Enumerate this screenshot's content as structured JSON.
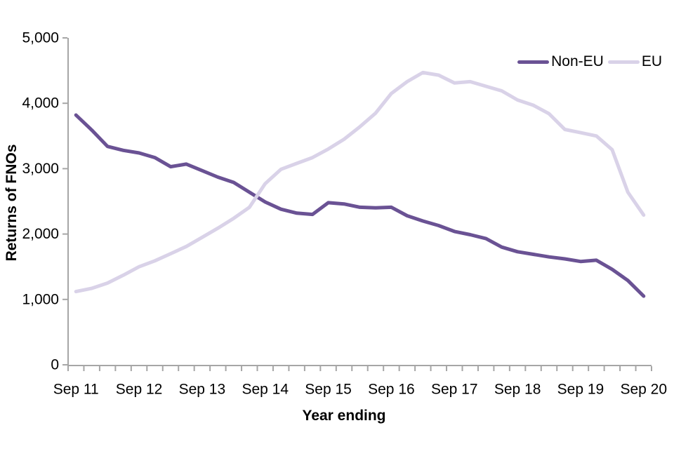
{
  "page": {
    "background": "#ffffff"
  },
  "chart_data": {
    "type": "line",
    "title": "",
    "xlabel": "Year ending",
    "ylabel": "Returns of FNOs",
    "ylim": [
      0,
      5000
    ],
    "grid": false,
    "legend_position": "top-right",
    "axis_color": "#a6a6a6",
    "text_color": "#000000",
    "line_width": 5,
    "y_ticks": [
      0,
      1000,
      2000,
      3000,
      4000,
      5000
    ],
    "y_tick_labels": [
      "0",
      "1,000",
      "2,000",
      "3,000",
      "4,000",
      "5,000"
    ],
    "x_major_tick_labels": [
      "Sep 11",
      "Sep 12",
      "Sep 13",
      "Sep 14",
      "Sep 15",
      "Sep 16",
      "Sep 17",
      "Sep 18",
      "Sep 19",
      "Sep 20"
    ],
    "categories": [
      "Sep 11",
      "Dec 11",
      "Mar 12",
      "Jun 12",
      "Sep 12",
      "Dec 12",
      "Mar 13",
      "Jun 13",
      "Sep 13",
      "Dec 13",
      "Mar 14",
      "Jun 14",
      "Sep 14",
      "Dec 14",
      "Mar 15",
      "Jun 15",
      "Sep 15",
      "Dec 15",
      "Mar 16",
      "Jun 16",
      "Sep 16",
      "Dec 16",
      "Mar 17",
      "Jun 17",
      "Sep 17",
      "Dec 17",
      "Mar 18",
      "Jun 18",
      "Sep 18",
      "Dec 18",
      "Mar 19",
      "Jun 19",
      "Sep 19",
      "Dec 19",
      "Mar 20",
      "Jun 20",
      "Sep 20"
    ],
    "series": [
      {
        "name": "Non-EU",
        "color": "#6a5294",
        "values": [
          3820,
          3590,
          3340,
          3280,
          3240,
          3170,
          3030,
          3070,
          2970,
          2870,
          2790,
          2640,
          2490,
          2380,
          2320,
          2300,
          2480,
          2460,
          2410,
          2400,
          2410,
          2280,
          2200,
          2130,
          2040,
          1990,
          1930,
          1800,
          1730,
          1690,
          1650,
          1620,
          1580,
          1600,
          1460,
          1290,
          1050
        ]
      },
      {
        "name": "EU",
        "color": "#d9d2e8",
        "values": [
          1120,
          1170,
          1250,
          1370,
          1500,
          1590,
          1700,
          1810,
          1950,
          2090,
          2240,
          2410,
          2770,
          2990,
          3080,
          3170,
          3300,
          3450,
          3640,
          3850,
          4150,
          4330,
          4470,
          4430,
          4310,
          4330,
          4260,
          4190,
          4050,
          3970,
          3840,
          3600,
          3550,
          3500,
          3290,
          2640,
          2290
        ]
      }
    ]
  }
}
